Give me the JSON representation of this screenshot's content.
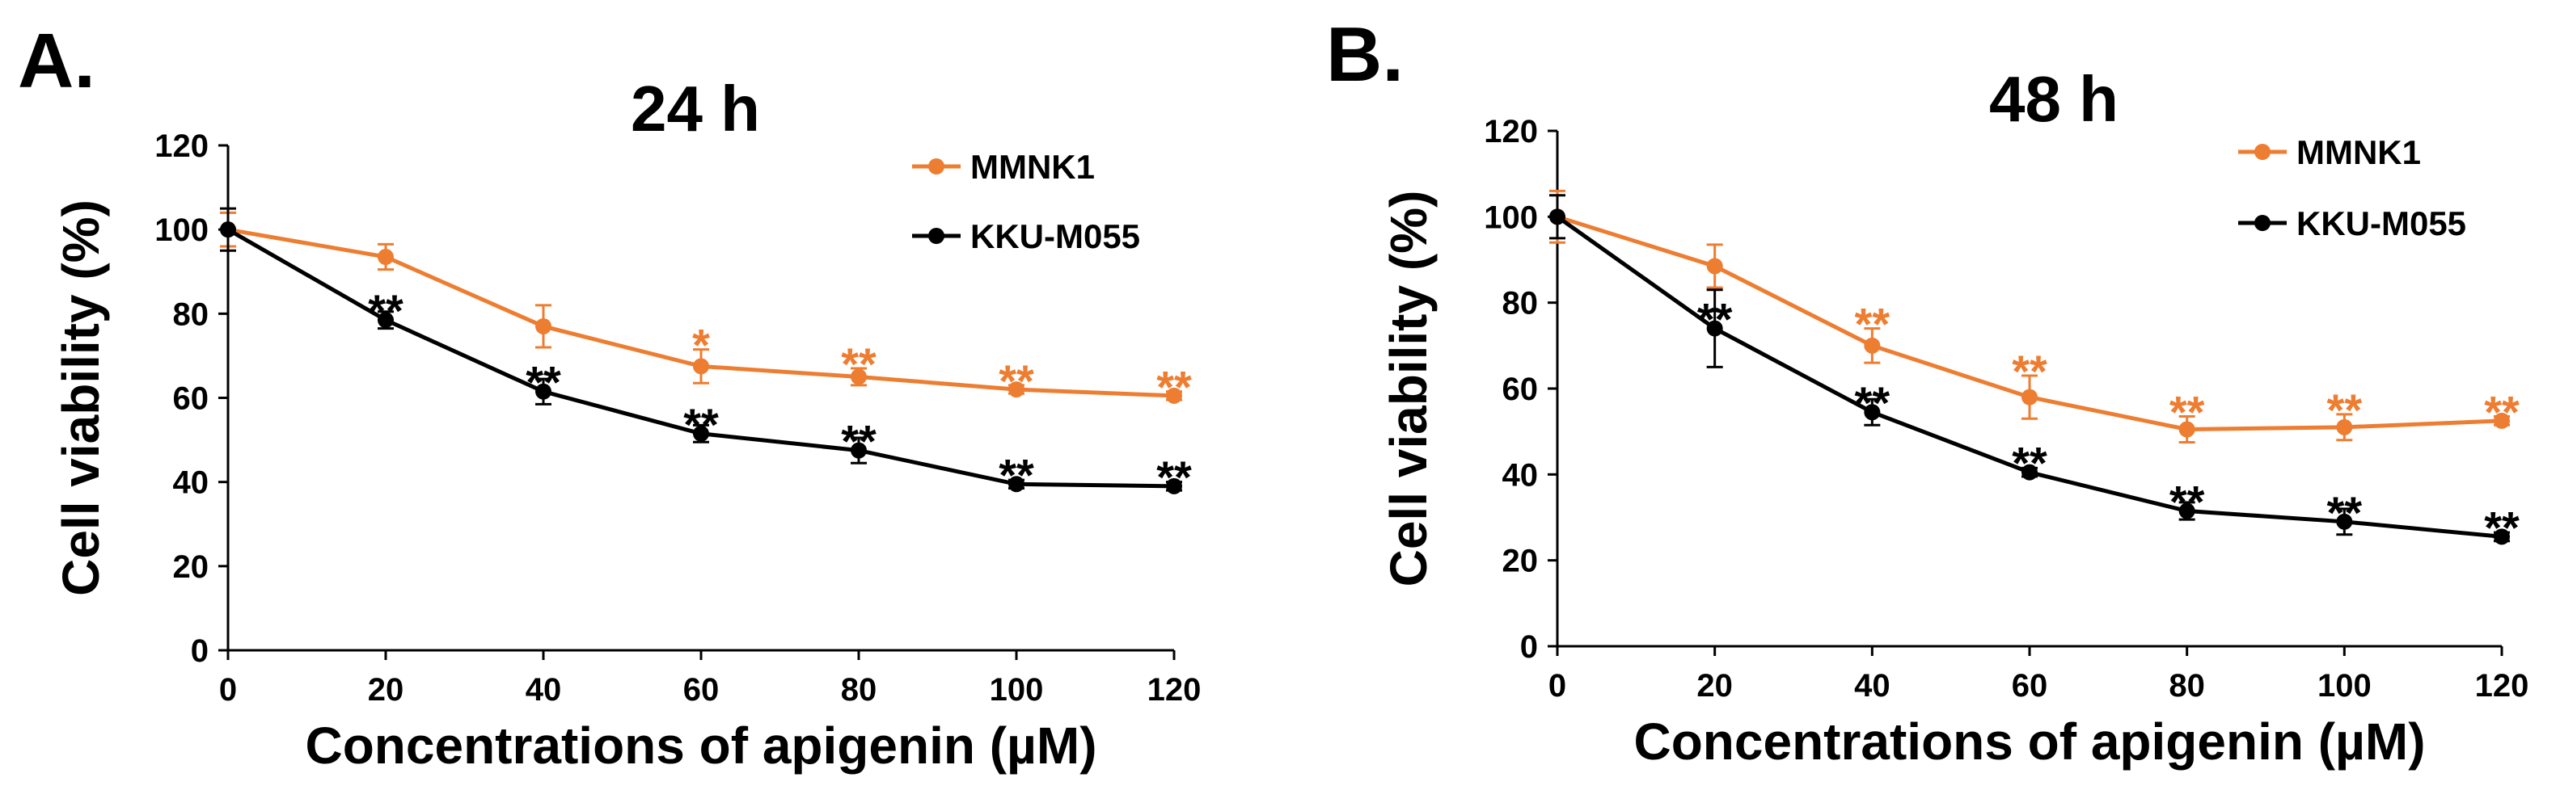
{
  "chart_data": [
    {
      "type": "line",
      "panel": "A.",
      "title": "24 h",
      "xlabel": "Concentrations of apigenin (µM)",
      "ylabel": "Cell viability (%)",
      "x": [
        0,
        20,
        40,
        60,
        80,
        100,
        120
      ],
      "xlim": [
        0,
        120
      ],
      "ylim": [
        0,
        120
      ],
      "xticks": [
        0,
        20,
        40,
        60,
        80,
        100,
        120
      ],
      "yticks": [
        0,
        20,
        40,
        60,
        80,
        100,
        120
      ],
      "grid": false,
      "legend": "top-right",
      "series": [
        {
          "name": "MMNK1",
          "color": "#ED7D31",
          "values": [
            100,
            93.5,
            77,
            67.5,
            65,
            62,
            60.5
          ],
          "errors": [
            4,
            3,
            5,
            4,
            2,
            1,
            1
          ],
          "significance": [
            "",
            "",
            "",
            "*",
            "**",
            "**",
            "**"
          ]
        },
        {
          "name": "KKU-M055",
          "color": "#000000",
          "values": [
            100,
            78.5,
            61.5,
            51.5,
            47.5,
            39.5,
            39
          ],
          "errors": [
            5,
            2,
            3,
            2,
            3,
            1,
            1
          ],
          "significance": [
            "",
            "**",
            "**",
            "**",
            "**",
            "**",
            "**"
          ]
        }
      ]
    },
    {
      "type": "line",
      "panel": "B.",
      "title": "48 h",
      "xlabel": "Concentrations of apigenin (µM)",
      "ylabel": "Cell viability (%)",
      "x": [
        0,
        20,
        40,
        60,
        80,
        100,
        120
      ],
      "xlim": [
        0,
        120
      ],
      "ylim": [
        0,
        120
      ],
      "xticks": [
        0,
        20,
        40,
        60,
        80,
        100,
        120
      ],
      "yticks": [
        0,
        20,
        40,
        60,
        80,
        100,
        120
      ],
      "grid": false,
      "legend": "top-right",
      "series": [
        {
          "name": "MMNK1",
          "color": "#ED7D31",
          "values": [
            100,
            88.5,
            70,
            58,
            50.5,
            51,
            52.5
          ],
          "errors": [
            6,
            5,
            4,
            5,
            3,
            3,
            1
          ],
          "significance": [
            "",
            "",
            "**",
            "**",
            "**",
            "**",
            "**"
          ]
        },
        {
          "name": "KKU-M055",
          "color": "#000000",
          "values": [
            100,
            74,
            54.5,
            40.5,
            31.5,
            29,
            25.5
          ],
          "errors": [
            5,
            9,
            3,
            1,
            2,
            3,
            1
          ],
          "significance": [
            "",
            "**",
            "**",
            "**",
            "**",
            "**",
            "**"
          ]
        }
      ]
    }
  ]
}
